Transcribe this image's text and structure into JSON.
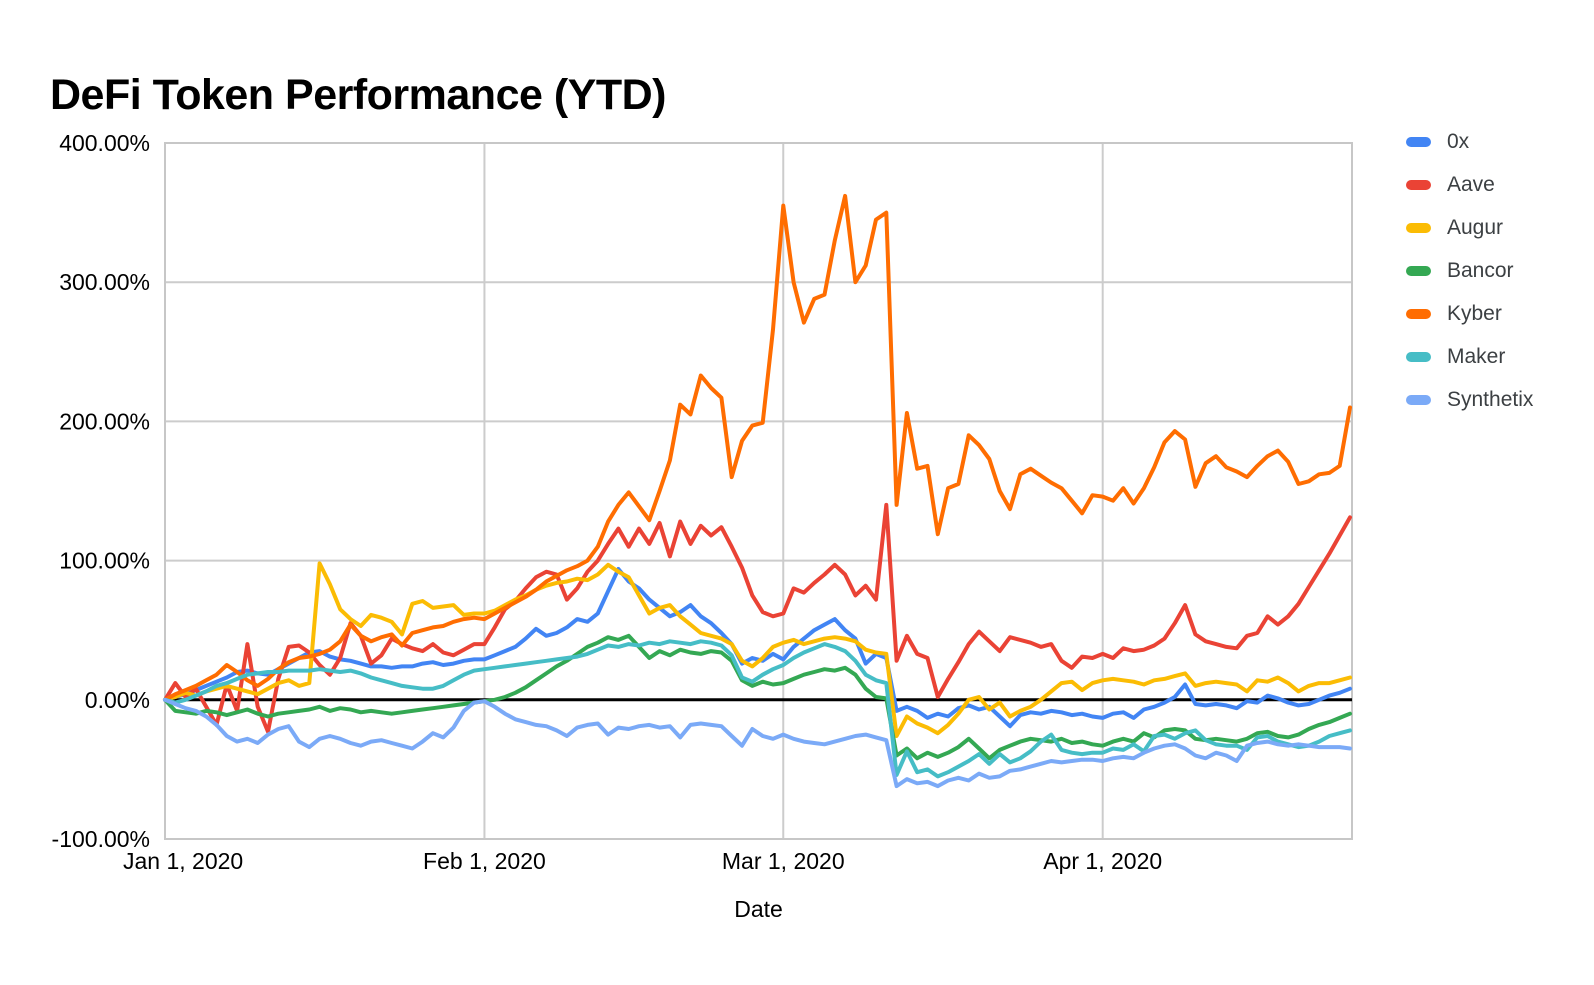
{
  "title": "DeFi Token Performance (YTD)",
  "legend_position": "right",
  "background_color": "#ffffff",
  "gridline_color": "#cccccc",
  "border_color": "#c7c7c7",
  "zero_line_color": "#000000",
  "axis_text_color": "#000000",
  "legend_text_color": "#3c4043",
  "chart_data": {
    "type": "line",
    "title": "DeFi Token Performance (YTD)",
    "xlabel": "Date",
    "ylabel": "",
    "ylim": [
      -100,
      400
    ],
    "grid": true,
    "legend_position": "right",
    "x_unit": "daily values, day index 0 = Jan 1, 2020",
    "n_points": 116,
    "y_ticks": [
      {
        "value": 400,
        "label": "400.00%"
      },
      {
        "value": 300,
        "label": "300.00%"
      },
      {
        "value": 200,
        "label": "200.00%"
      },
      {
        "value": 100,
        "label": "100.00%"
      },
      {
        "value": 0,
        "label": "0.00%"
      },
      {
        "value": -100,
        "label": "-100.00%"
      }
    ],
    "x_ticks": [
      {
        "day": 0,
        "label": "Jan 1, 2020"
      },
      {
        "day": 31,
        "label": "Feb 1, 2020"
      },
      {
        "day": 60,
        "label": "Mar 1, 2020"
      },
      {
        "day": 91,
        "label": "Apr 1, 2020"
      }
    ],
    "series": [
      {
        "name": "0x",
        "color": "#4285f4",
        "values": [
          0,
          2,
          4,
          7,
          10,
          13,
          16,
          20,
          21,
          19,
          18,
          22,
          26,
          30,
          34,
          35,
          31,
          29,
          28,
          26,
          24,
          24,
          23,
          24,
          24,
          26,
          27,
          25,
          26,
          28,
          29,
          29,
          32,
          35,
          38,
          44,
          51,
          46,
          48,
          52,
          58,
          56,
          62,
          78,
          94,
          85,
          80,
          72,
          66,
          60,
          63,
          68,
          60,
          55,
          48,
          40,
          26,
          30,
          28,
          33,
          29,
          38,
          44,
          50,
          54,
          58,
          50,
          44,
          26,
          33,
          30,
          -8,
          -5,
          -8,
          -13,
          -10,
          -12,
          -6,
          -4,
          -7,
          -5,
          -12,
          -19,
          -11,
          -9,
          -10,
          -8,
          -9,
          -11,
          -10,
          -12,
          -13,
          -10,
          -9,
          -13,
          -7,
          -5,
          -2,
          2,
          11,
          -3,
          -4,
          -3,
          -4,
          -6,
          -1,
          -2,
          3,
          1,
          -2,
          -4,
          -3,
          0,
          3,
          5,
          8
        ]
      },
      {
        "name": "Aave",
        "color": "#ea4335",
        "values": [
          0,
          12,
          2,
          8,
          -5,
          -18,
          11,
          -8,
          40,
          -5,
          -23,
          15,
          38,
          39,
          34,
          25,
          18,
          30,
          55,
          46,
          26,
          32,
          44,
          40,
          37,
          35,
          40,
          34,
          32,
          36,
          40,
          40,
          52,
          65,
          71,
          80,
          88,
          92,
          90,
          72,
          80,
          92,
          100,
          112,
          123,
          110,
          123,
          112,
          127,
          103,
          128,
          112,
          125,
          118,
          124,
          110,
          95,
          75,
          63,
          60,
          62,
          80,
          77,
          84,
          90,
          97,
          90,
          75,
          82,
          72,
          140,
          28,
          46,
          33,
          30,
          2,
          15,
          27,
          40,
          49,
          42,
          35,
          45,
          43,
          41,
          38,
          40,
          28,
          23,
          31,
          30,
          33,
          30,
          37,
          35,
          36,
          39,
          44,
          55,
          68,
          47,
          42,
          40,
          38,
          37,
          46,
          48,
          60,
          54,
          60,
          69,
          81,
          93,
          105,
          118,
          131
        ]
      },
      {
        "name": "Augur",
        "color": "#fbbc04",
        "values": [
          0,
          2,
          5,
          3,
          6,
          8,
          10,
          8,
          6,
          4,
          8,
          12,
          14,
          10,
          12,
          98,
          83,
          65,
          58,
          53,
          61,
          59,
          56,
          47,
          69,
          71,
          66,
          67,
          68,
          61,
          62,
          62,
          64,
          68,
          72,
          75,
          79,
          82,
          84,
          85,
          87,
          86,
          90,
          97,
          92,
          88,
          75,
          62,
          66,
          68,
          60,
          54,
          48,
          46,
          44,
          40,
          28,
          24,
          30,
          38,
          41,
          43,
          40,
          42,
          44,
          45,
          44,
          42,
          36,
          34,
          33,
          -26,
          -12,
          -17,
          -20,
          -24,
          -18,
          -10,
          0,
          2,
          -7,
          -2,
          -12,
          -8,
          -5,
          0,
          6,
          12,
          13,
          7,
          12,
          14,
          15,
          14,
          13,
          11,
          14,
          15,
          17,
          19,
          10,
          12,
          13,
          12,
          11,
          6,
          14,
          13,
          16,
          12,
          6,
          10,
          12,
          12,
          14,
          16
        ]
      },
      {
        "name": "Bancor",
        "color": "#34a853",
        "values": [
          0,
          -8,
          -9,
          -10,
          -8,
          -9,
          -11,
          -9,
          -7,
          -10,
          -12,
          -10,
          -9,
          -8,
          -7,
          -5,
          -8,
          -6,
          -7,
          -9,
          -8,
          -9,
          -10,
          -9,
          -8,
          -7,
          -6,
          -5,
          -4,
          -3,
          -2,
          -1,
          0,
          2,
          5,
          9,
          14,
          19,
          24,
          28,
          33,
          38,
          41,
          45,
          43,
          46,
          38,
          30,
          35,
          32,
          36,
          34,
          33,
          35,
          34,
          28,
          14,
          10,
          13,
          11,
          12,
          15,
          18,
          20,
          22,
          21,
          23,
          18,
          8,
          2,
          1,
          -40,
          -35,
          -42,
          -38,
          -41,
          -38,
          -34,
          -28,
          -35,
          -42,
          -36,
          -33,
          -30,
          -28,
          -29,
          -30,
          -28,
          -31,
          -30,
          -32,
          -33,
          -30,
          -28,
          -30,
          -24,
          -27,
          -22,
          -21,
          -22,
          -28,
          -29,
          -28,
          -29,
          -30,
          -28,
          -24,
          -23,
          -26,
          -27,
          -25,
          -21,
          -18,
          -16,
          -13,
          -10
        ]
      },
      {
        "name": "Kyber",
        "color": "#ff6d01",
        "values": [
          0,
          4,
          7,
          10,
          14,
          18,
          25,
          20,
          14,
          10,
          15,
          22,
          27,
          30,
          31,
          33,
          36,
          42,
          54,
          46,
          42,
          45,
          47,
          39,
          48,
          50,
          52,
          53,
          56,
          58,
          59,
          58,
          62,
          66,
          70,
          74,
          79,
          85,
          89,
          93,
          96,
          100,
          110,
          128,
          140,
          149,
          139,
          129,
          150,
          172,
          212,
          205,
          233,
          224,
          217,
          160,
          186,
          197,
          199,
          266,
          355,
          300,
          271,
          288,
          291,
          330,
          362,
          300,
          312,
          345,
          350,
          140,
          206,
          166,
          168,
          119,
          152,
          155,
          190,
          183,
          173,
          150,
          137,
          162,
          166,
          161,
          156,
          152,
          143,
          134,
          147,
          146,
          143,
          152,
          141,
          152,
          167,
          185,
          193,
          187,
          153,
          170,
          175,
          167,
          164,
          160,
          168,
          175,
          179,
          171,
          155,
          157,
          162,
          163,
          168,
          210
        ]
      },
      {
        "name": "Maker",
        "color": "#46bdc6",
        "values": [
          0,
          -2,
          0,
          3,
          6,
          10,
          12,
          15,
          18,
          19,
          20,
          20,
          21,
          21,
          21,
          22,
          21,
          20,
          21,
          19,
          16,
          14,
          12,
          10,
          9,
          8,
          8,
          10,
          14,
          18,
          21,
          22,
          23,
          24,
          25,
          26,
          27,
          28,
          29,
          30,
          31,
          33,
          36,
          39,
          38,
          40,
          39,
          41,
          40,
          42,
          41,
          40,
          42,
          41,
          39,
          32,
          16,
          13,
          18,
          22,
          25,
          30,
          34,
          37,
          40,
          38,
          35,
          28,
          18,
          14,
          12,
          -54,
          -37,
          -52,
          -50,
          -55,
          -52,
          -48,
          -44,
          -39,
          -46,
          -39,
          -45,
          -42,
          -37,
          -30,
          -25,
          -36,
          -38,
          -39,
          -38,
          -38,
          -35,
          -36,
          -32,
          -37,
          -26,
          -25,
          -28,
          -24,
          -22,
          -29,
          -32,
          -33,
          -33,
          -36,
          -27,
          -26,
          -30,
          -32,
          -34,
          -33,
          -30,
          -26,
          -24,
          -22
        ]
      },
      {
        "name": "Synthetix",
        "color": "#7baaf7",
        "values": [
          0,
          -3,
          -6,
          -8,
          -12,
          -18,
          -26,
          -30,
          -28,
          -31,
          -25,
          -21,
          -19,
          -30,
          -34,
          -28,
          -26,
          -28,
          -31,
          -33,
          -30,
          -29,
          -31,
          -33,
          -35,
          -30,
          -24,
          -27,
          -20,
          -8,
          -2,
          -1,
          -5,
          -10,
          -14,
          -16,
          -18,
          -19,
          -22,
          -26,
          -20,
          -18,
          -17,
          -25,
          -20,
          -21,
          -19,
          -18,
          -20,
          -19,
          -27,
          -18,
          -17,
          -18,
          -19,
          -26,
          -33,
          -21,
          -26,
          -28,
          -25,
          -28,
          -30,
          -31,
          -32,
          -30,
          -28,
          -26,
          -25,
          -27,
          -29,
          -62,
          -57,
          -60,
          -59,
          -62,
          -58,
          -56,
          -58,
          -53,
          -56,
          -55,
          -51,
          -50,
          -48,
          -46,
          -44,
          -45,
          -44,
          -43,
          -43,
          -44,
          -42,
          -41,
          -42,
          -38,
          -35,
          -33,
          -32,
          -35,
          -40,
          -42,
          -38,
          -40,
          -44,
          -33,
          -31,
          -30,
          -32,
          -33,
          -32,
          -33,
          -34,
          -34,
          -34,
          -35
        ]
      }
    ]
  }
}
